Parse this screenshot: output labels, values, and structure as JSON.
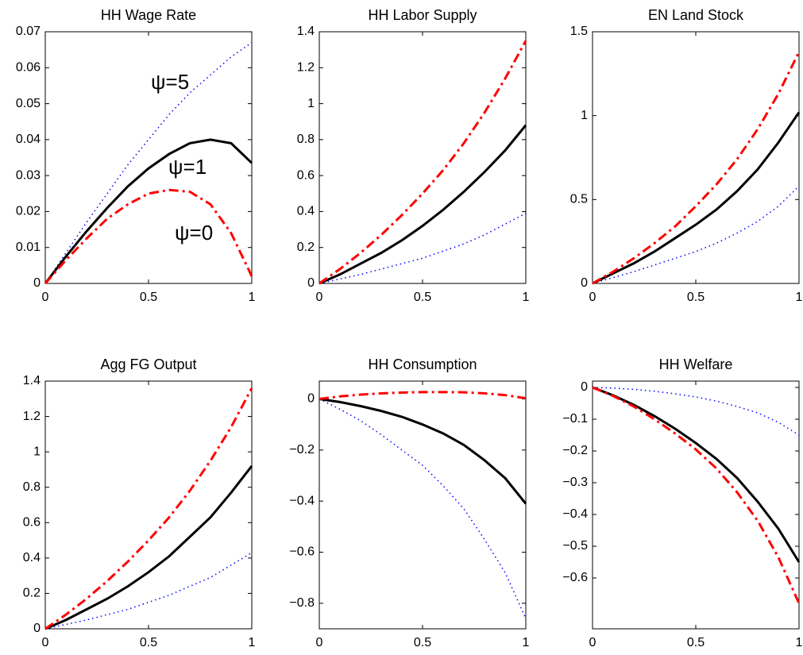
{
  "chart_data": [
    {
      "type": "line",
      "title": "HH Wage Rate",
      "x": [
        0,
        0.1,
        0.2,
        0.3,
        0.4,
        0.5,
        0.6,
        0.7,
        0.8,
        0.9,
        1
      ],
      "xlim": [
        0,
        1
      ],
      "xticks": [
        0,
        0.5,
        1
      ],
      "ylim": [
        0,
        0.07
      ],
      "yticks": [
        0,
        0.01,
        0.02,
        0.03,
        0.04,
        0.05,
        0.06,
        0.07
      ],
      "series": [
        {
          "color": "#0000ff",
          "dash": "dotted",
          "values": [
            0,
            0.0085,
            0.017,
            0.025,
            0.033,
            0.04,
            0.047,
            0.053,
            0.058,
            0.063,
            0.067
          ]
        },
        {
          "color": "#000000",
          "dash": "solid",
          "values": [
            0,
            0.0075,
            0.0145,
            0.021,
            0.027,
            0.032,
            0.036,
            0.039,
            0.04,
            0.039,
            0.0335
          ]
        },
        {
          "color": "#ff0000",
          "dash": "dashdot",
          "values": [
            0,
            0.0065,
            0.0125,
            0.018,
            0.022,
            0.025,
            0.026,
            0.0255,
            0.022,
            0.014,
            0.002
          ]
        }
      ],
      "annotations": [
        "ψ=5",
        "ψ=1",
        "ψ=0"
      ]
    },
    {
      "type": "line",
      "title": "HH Labor Supply",
      "x": [
        0,
        0.1,
        0.2,
        0.3,
        0.4,
        0.5,
        0.6,
        0.7,
        0.8,
        0.9,
        1
      ],
      "xlim": [
        0,
        1
      ],
      "xticks": [
        0,
        0.5,
        1
      ],
      "ylim": [
        0,
        1.4
      ],
      "yticks": [
        0,
        0.2,
        0.4,
        0.6,
        0.8,
        1,
        1.2,
        1.4
      ],
      "series": [
        {
          "color": "#0000ff",
          "dash": "dotted",
          "values": [
            0,
            0.025,
            0.05,
            0.08,
            0.11,
            0.14,
            0.18,
            0.22,
            0.27,
            0.33,
            0.39
          ]
        },
        {
          "color": "#000000",
          "dash": "solid",
          "values": [
            0,
            0.05,
            0.11,
            0.17,
            0.24,
            0.32,
            0.41,
            0.51,
            0.62,
            0.74,
            0.88
          ]
        },
        {
          "color": "#ff0000",
          "dash": "dashdot",
          "values": [
            0,
            0.08,
            0.17,
            0.27,
            0.38,
            0.5,
            0.63,
            0.78,
            0.95,
            1.14,
            1.35
          ]
        }
      ]
    },
    {
      "type": "line",
      "title": "EN Land Stock",
      "x": [
        0,
        0.1,
        0.2,
        0.3,
        0.4,
        0.5,
        0.6,
        0.7,
        0.8,
        0.9,
        1
      ],
      "xlim": [
        0,
        1
      ],
      "xticks": [
        0,
        0.5,
        1
      ],
      "ylim": [
        0,
        1.5
      ],
      "yticks": [
        0,
        0.5,
        1,
        1.5
      ],
      "series": [
        {
          "color": "#0000ff",
          "dash": "dotted",
          "values": [
            0,
            0.035,
            0.07,
            0.11,
            0.15,
            0.19,
            0.24,
            0.3,
            0.37,
            0.46,
            0.58
          ]
        },
        {
          "color": "#000000",
          "dash": "solid",
          "values": [
            0,
            0.06,
            0.12,
            0.19,
            0.27,
            0.35,
            0.44,
            0.55,
            0.68,
            0.84,
            1.02
          ]
        },
        {
          "color": "#ff0000",
          "dash": "dashdot",
          "values": [
            0,
            0.07,
            0.15,
            0.24,
            0.34,
            0.46,
            0.59,
            0.74,
            0.92,
            1.13,
            1.38
          ]
        }
      ]
    },
    {
      "type": "line",
      "title": "Agg FG Output",
      "x": [
        0,
        0.1,
        0.2,
        0.3,
        0.4,
        0.5,
        0.6,
        0.7,
        0.8,
        0.9,
        1
      ],
      "xlim": [
        0,
        1
      ],
      "xticks": [
        0,
        0.5,
        1
      ],
      "ylim": [
        0,
        1.4
      ],
      "yticks": [
        0,
        0.2,
        0.4,
        0.6,
        0.8,
        1,
        1.2,
        1.4
      ],
      "series": [
        {
          "color": "#0000ff",
          "dash": "dotted",
          "values": [
            0,
            0.025,
            0.05,
            0.08,
            0.11,
            0.15,
            0.19,
            0.24,
            0.29,
            0.36,
            0.43
          ]
        },
        {
          "color": "#000000",
          "dash": "solid",
          "values": [
            0,
            0.05,
            0.11,
            0.17,
            0.24,
            0.32,
            0.41,
            0.52,
            0.63,
            0.77,
            0.92
          ]
        },
        {
          "color": "#ff0000",
          "dash": "dashdot",
          "values": [
            0,
            0.08,
            0.17,
            0.27,
            0.38,
            0.5,
            0.63,
            0.78,
            0.95,
            1.14,
            1.36
          ]
        }
      ]
    },
    {
      "type": "line",
      "title": "HH Consumption",
      "x": [
        0,
        0.1,
        0.2,
        0.3,
        0.4,
        0.5,
        0.6,
        0.7,
        0.8,
        0.9,
        1
      ],
      "xlim": [
        0,
        1
      ],
      "xticks": [
        0,
        0.5,
        1
      ],
      "ylim": [
        -0.9,
        0.07
      ],
      "yticks": [
        {
          "value": -0.8,
          "label": "−0.8"
        },
        {
          "value": -0.6,
          "label": "−0.6"
        },
        {
          "value": -0.4,
          "label": "−0.4"
        },
        {
          "value": -0.2,
          "label": "−0.2"
        },
        0
      ],
      "series": [
        {
          "color": "#0000ff",
          "dash": "dotted",
          "values": [
            0,
            -0.04,
            -0.085,
            -0.14,
            -0.2,
            -0.26,
            -0.34,
            -0.43,
            -0.55,
            -0.68,
            -0.86
          ]
        },
        {
          "color": "#000000",
          "dash": "solid",
          "values": [
            0,
            -0.012,
            -0.028,
            -0.047,
            -0.07,
            -0.1,
            -0.135,
            -0.18,
            -0.24,
            -0.31,
            -0.41
          ]
        },
        {
          "color": "#ff0000",
          "dash": "dashdot",
          "values": [
            0,
            0.01,
            0.017,
            0.022,
            0.025,
            0.027,
            0.027,
            0.026,
            0.022,
            0.015,
            0.003
          ]
        }
      ]
    },
    {
      "type": "line",
      "title": "HH Welfare",
      "x": [
        0,
        0.1,
        0.2,
        0.3,
        0.4,
        0.5,
        0.6,
        0.7,
        0.8,
        0.9,
        1
      ],
      "xlim": [
        0,
        1
      ],
      "xticks": [
        0,
        0.5,
        1
      ],
      "ylim": [
        -0.76,
        0.02
      ],
      "yticks": [
        {
          "value": -0.6,
          "label": "−0.6"
        },
        {
          "value": -0.5,
          "label": "−0.5"
        },
        {
          "value": -0.4,
          "label": "−0.4"
        },
        {
          "value": -0.3,
          "label": "−0.3"
        },
        {
          "value": -0.2,
          "label": "−0.2"
        },
        {
          "value": -0.1,
          "label": "−0.1"
        },
        0
      ],
      "series": [
        {
          "color": "#0000ff",
          "dash": "dotted",
          "values": [
            0,
            -0.002,
            -0.006,
            -0.012,
            -0.02,
            -0.03,
            -0.043,
            -0.06,
            -0.08,
            -0.11,
            -0.15
          ]
        },
        {
          "color": "#000000",
          "dash": "solid",
          "values": [
            0,
            -0.025,
            -0.055,
            -0.09,
            -0.13,
            -0.175,
            -0.225,
            -0.285,
            -0.36,
            -0.445,
            -0.55
          ]
        },
        {
          "color": "#ff0000",
          "dash": "dashdot",
          "values": [
            0,
            -0.027,
            -0.06,
            -0.1,
            -0.145,
            -0.195,
            -0.255,
            -0.33,
            -0.42,
            -0.535,
            -0.68
          ]
        }
      ]
    }
  ]
}
